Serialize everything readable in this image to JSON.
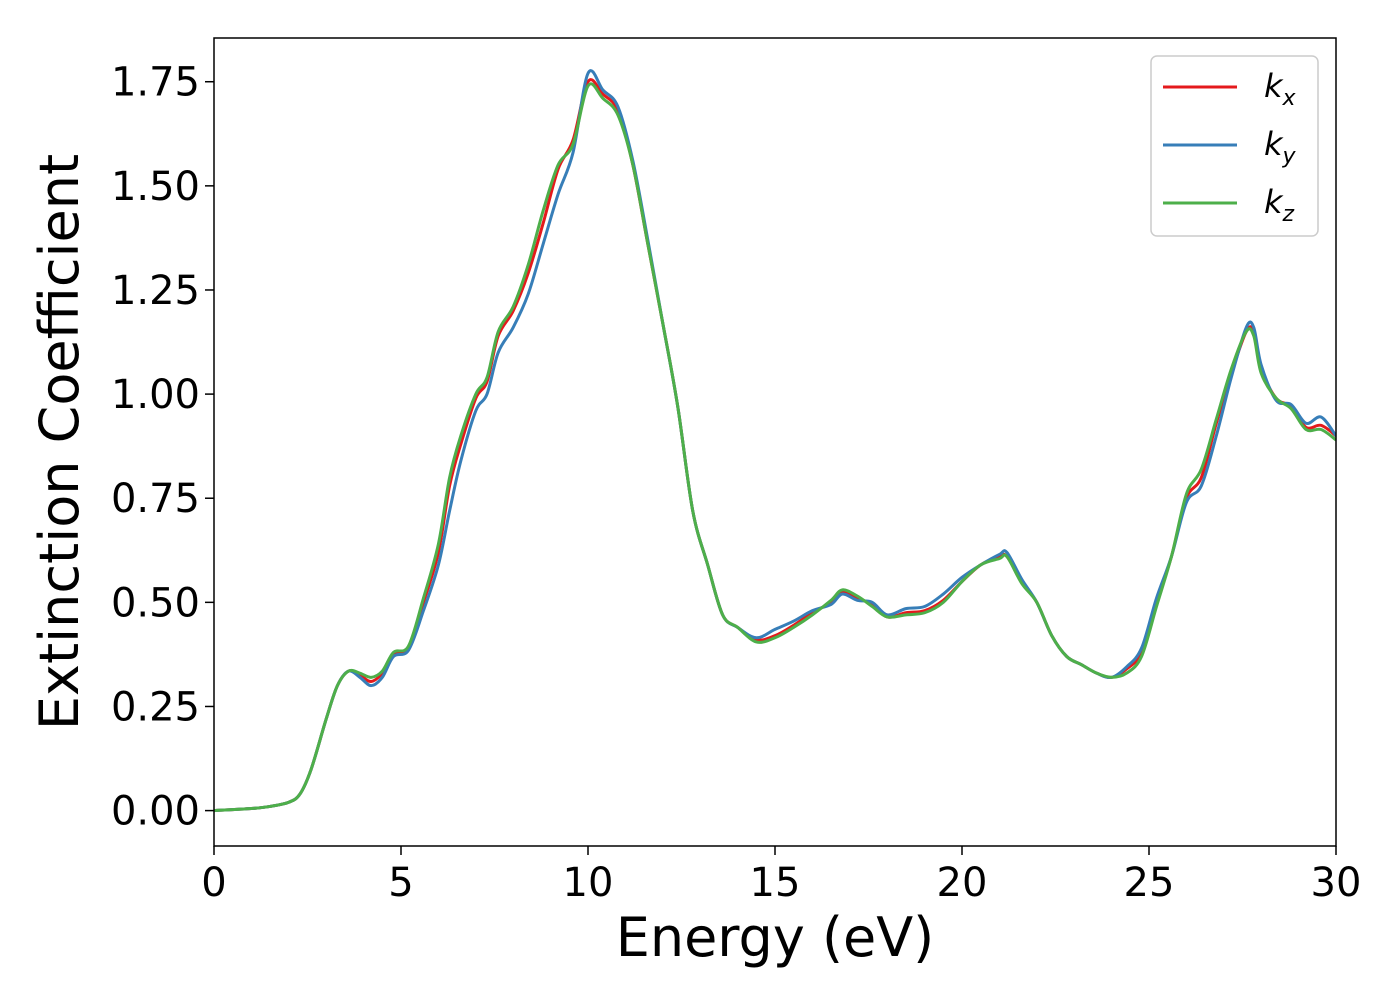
{
  "chart_data": {
    "type": "line",
    "title": "",
    "xlabel": "Energy (eV)",
    "ylabel": "Extinction Coefficient",
    "xlim": [
      0,
      30
    ],
    "ylim": [
      -0.085,
      1.855
    ],
    "xticks": [
      0,
      5,
      10,
      15,
      20,
      25,
      30
    ],
    "xtick_labels": [
      "0",
      "5",
      "10",
      "15",
      "20",
      "25",
      "30"
    ],
    "yticks": [
      0.0,
      0.25,
      0.5,
      0.75,
      1.0,
      1.25,
      1.5,
      1.75
    ],
    "ytick_labels": [
      "0.00",
      "0.25",
      "0.50",
      "0.75",
      "1.00",
      "1.25",
      "1.50",
      "1.75"
    ],
    "grid": false,
    "legend_position": "top-right",
    "series": [
      {
        "name_base": "k",
        "name_sub": "x",
        "color": "#e41a1c",
        "x": [
          0,
          1,
          1.5,
          2,
          2.3,
          2.6,
          3,
          3.3,
          3.6,
          3.9,
          4.2,
          4.5,
          4.8,
          5.2,
          5.6,
          6,
          6.3,
          6.6,
          7,
          7.3,
          7.6,
          8,
          8.4,
          8.8,
          9.2,
          9.6,
          10,
          10.4,
          10.8,
          11.2,
          11.6,
          12,
          12.4,
          12.8,
          13.2,
          13.6,
          14,
          14.5,
          15,
          15.5,
          16,
          16.5,
          16.8,
          17.2,
          17.6,
          18,
          18.5,
          19,
          19.5,
          20,
          20.5,
          21,
          21.2,
          21.6,
          22,
          22.4,
          22.8,
          23.2,
          23.6,
          24,
          24.4,
          24.8,
          25.2,
          25.6,
          26,
          26.4,
          26.8,
          27.2,
          27.6,
          27.8,
          28,
          28.4,
          28.8,
          29.2,
          29.6,
          30
        ],
        "y": [
          0,
          0.005,
          0.01,
          0.02,
          0.04,
          0.1,
          0.22,
          0.3,
          0.335,
          0.325,
          0.31,
          0.33,
          0.375,
          0.39,
          0.5,
          0.62,
          0.78,
          0.88,
          0.99,
          1.03,
          1.14,
          1.2,
          1.29,
          1.41,
          1.54,
          1.61,
          1.75,
          1.72,
          1.68,
          1.55,
          1.36,
          1.17,
          0.97,
          0.72,
          0.59,
          0.47,
          0.44,
          0.41,
          0.42,
          0.445,
          0.475,
          0.5,
          0.525,
          0.51,
          0.495,
          0.465,
          0.475,
          0.48,
          0.505,
          0.55,
          0.59,
          0.61,
          0.61,
          0.55,
          0.5,
          0.42,
          0.37,
          0.35,
          0.33,
          0.32,
          0.34,
          0.38,
          0.5,
          0.61,
          0.75,
          0.8,
          0.93,
          1.05,
          1.15,
          1.15,
          1.06,
          0.99,
          0.97,
          0.92,
          0.925,
          0.9
        ]
      },
      {
        "name_base": "k",
        "name_sub": "y",
        "color": "#377eb8",
        "x": [
          0,
          1,
          1.5,
          2,
          2.3,
          2.6,
          3,
          3.3,
          3.6,
          3.9,
          4.2,
          4.5,
          4.8,
          5.2,
          5.6,
          6,
          6.3,
          6.6,
          7,
          7.3,
          7.6,
          8,
          8.4,
          8.8,
          9.2,
          9.6,
          10,
          10.4,
          10.8,
          11.2,
          11.6,
          12,
          12.4,
          12.8,
          13.2,
          13.6,
          14,
          14.5,
          15,
          15.5,
          16,
          16.5,
          16.8,
          17.2,
          17.6,
          18,
          18.5,
          19,
          19.5,
          20,
          20.5,
          21,
          21.2,
          21.6,
          22,
          22.4,
          22.8,
          23.2,
          23.6,
          24,
          24.4,
          24.8,
          25.2,
          25.6,
          26,
          26.4,
          26.8,
          27.2,
          27.6,
          27.8,
          28,
          28.4,
          28.8,
          29.2,
          29.6,
          30
        ],
        "y": [
          0,
          0.005,
          0.01,
          0.02,
          0.04,
          0.1,
          0.22,
          0.3,
          0.335,
          0.32,
          0.3,
          0.32,
          0.37,
          0.385,
          0.48,
          0.59,
          0.72,
          0.84,
          0.96,
          1.0,
          1.1,
          1.16,
          1.24,
          1.36,
          1.48,
          1.58,
          1.77,
          1.73,
          1.69,
          1.56,
          1.37,
          1.17,
          0.97,
          0.72,
          0.59,
          0.47,
          0.44,
          0.415,
          0.435,
          0.455,
          0.48,
          0.495,
          0.52,
          0.505,
          0.5,
          0.47,
          0.485,
          0.49,
          0.52,
          0.56,
          0.59,
          0.615,
          0.62,
          0.555,
          0.5,
          0.42,
          0.37,
          0.35,
          0.33,
          0.32,
          0.345,
          0.39,
          0.51,
          0.61,
          0.74,
          0.78,
          0.9,
          1.04,
          1.16,
          1.16,
          1.07,
          0.985,
          0.975,
          0.93,
          0.945,
          0.9
        ]
      },
      {
        "name_base": "k",
        "name_sub": "z",
        "color": "#4daf4a",
        "x": [
          0,
          1,
          1.5,
          2,
          2.3,
          2.6,
          3,
          3.3,
          3.6,
          3.9,
          4.2,
          4.5,
          4.8,
          5.2,
          5.6,
          6,
          6.3,
          6.6,
          7,
          7.3,
          7.6,
          8,
          8.4,
          8.8,
          9.2,
          9.6,
          10,
          10.4,
          10.8,
          11.2,
          11.6,
          12,
          12.4,
          12.8,
          13.2,
          13.6,
          14,
          14.5,
          15,
          15.5,
          16,
          16.5,
          16.8,
          17.2,
          17.6,
          18,
          18.5,
          19,
          19.5,
          20,
          20.5,
          21,
          21.2,
          21.6,
          22,
          22.4,
          22.8,
          23.2,
          23.6,
          24,
          24.4,
          24.8,
          25.2,
          25.6,
          26,
          26.4,
          26.8,
          27.2,
          27.6,
          27.8,
          28,
          28.4,
          28.8,
          29.2,
          29.6,
          30
        ],
        "y": [
          0,
          0.005,
          0.01,
          0.02,
          0.04,
          0.1,
          0.22,
          0.3,
          0.335,
          0.33,
          0.32,
          0.335,
          0.38,
          0.395,
          0.51,
          0.64,
          0.8,
          0.9,
          1.0,
          1.04,
          1.15,
          1.21,
          1.31,
          1.44,
          1.55,
          1.6,
          1.74,
          1.71,
          1.67,
          1.55,
          1.36,
          1.17,
          0.97,
          0.72,
          0.59,
          0.47,
          0.44,
          0.405,
          0.415,
          0.44,
          0.47,
          0.505,
          0.53,
          0.515,
          0.49,
          0.465,
          0.47,
          0.475,
          0.5,
          0.55,
          0.59,
          0.605,
          0.61,
          0.545,
          0.5,
          0.42,
          0.37,
          0.35,
          0.33,
          0.32,
          0.33,
          0.37,
          0.49,
          0.61,
          0.76,
          0.82,
          0.94,
          1.06,
          1.15,
          1.14,
          1.05,
          0.99,
          0.965,
          0.915,
          0.915,
          0.89
        ]
      }
    ]
  }
}
